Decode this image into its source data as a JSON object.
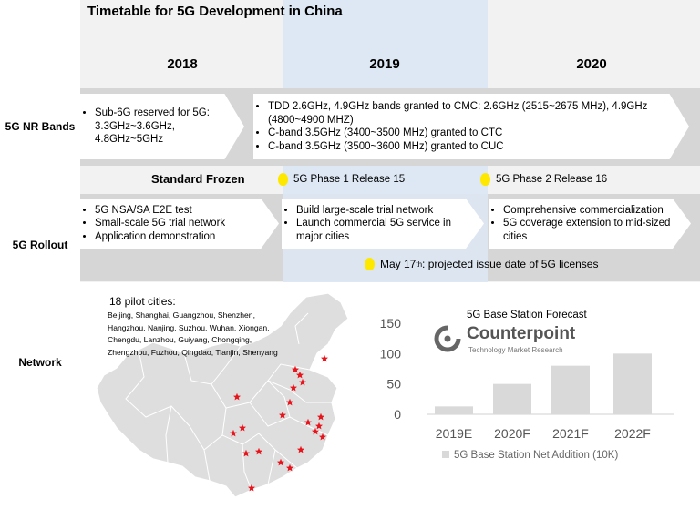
{
  "title": "Timetable for 5G Development in China",
  "years": [
    "2018",
    "2019",
    "2020"
  ],
  "rows": {
    "nr_bands": "5G NR Bands",
    "rollout": "5G Rollout",
    "network": "Network"
  },
  "nr_bands": {
    "y2018": [
      "Sub-6G reserved for 5G: 3.3GHz~3.6GHz, 4.8GHz~5GHz"
    ],
    "y2019": [
      "TDD 2.6GHz, 4.9GHz bands granted to CMC: 2.6GHz (2515~2675 MHz), 4.9GHz (4800~4900 MHZ)",
      "C-band 3.5GHz (3400~3500 MHz) granted to CTC",
      "C-band 3.5GHz (3500~3600 MHz) granted to CUC"
    ]
  },
  "standards": {
    "frozen_label": "Standard Frozen",
    "phase1": "5G Phase 1 Release 15",
    "phase2": "5G Phase 2 Release 16"
  },
  "rollout": {
    "y2018": [
      "5G NSA/SA E2E test",
      "Small-scale 5G trial network",
      "Application demonstration"
    ],
    "y2019": [
      "Build large-scale trial network",
      "Launch commercial 5G service in major cities"
    ],
    "y2020": [
      "Comprehensive commercialization",
      "5G coverage extension to mid-sized cities"
    ]
  },
  "license": {
    "prefix": "May 17",
    "sup": "th",
    "suffix": ": projected issue date of 5G licenses"
  },
  "network": {
    "pilot_title": "18 pilot cities:",
    "pilot_lines": [
      "Beijing, Shanghai, Guangzhou, Shenzhen,",
      "Hangzhou, Nanjing, Suzhou, Wuhan, Xiongan,",
      "Chengdu, Lanzhou, Guiyang, Chongqing,",
      "Zhengzhou, Fuzhou, Qingdao, Tianjin, Shenyang"
    ]
  },
  "logo": {
    "name": "Counterpoint",
    "tagline": "Technology Market Research"
  },
  "colors": {
    "band_gray": "#d6d6d6",
    "col_mid": "#dde8f4",
    "bar": "#d9d9d9",
    "star": "#e8141c",
    "bulb": "#ffe800"
  },
  "chart_data": {
    "type": "bar",
    "title": "5G Base Station Forecast",
    "categories": [
      "2019E",
      "2020F",
      "2021F",
      "2022F"
    ],
    "series": [
      {
        "name": "5G Base Station Net Addition (10K)",
        "values": [
          13,
          50,
          80,
          100
        ]
      }
    ],
    "yticks": [
      0,
      50,
      100,
      150
    ],
    "ylim": [
      0,
      150
    ],
    "grid": false,
    "legend": "bottom"
  }
}
